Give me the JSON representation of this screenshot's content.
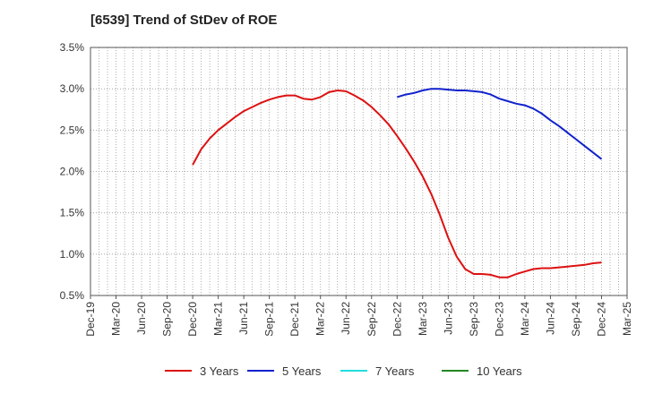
{
  "title": "[6539]  Trend of StDev of ROE",
  "chart_data": {
    "type": "line",
    "title": "[6539]  Trend of StDev of ROE",
    "xlabel": "",
    "ylabel": "",
    "ylim": [
      0.5,
      3.5
    ],
    "y_ticks": [
      0.5,
      1.0,
      1.5,
      2.0,
      2.5,
      3.0,
      3.5
    ],
    "y_tick_labels": [
      "0.5%",
      "1.0%",
      "1.5%",
      "2.0%",
      "2.5%",
      "3.0%",
      "3.5%"
    ],
    "x_tick_labels": [
      "Dec-19",
      "Mar-20",
      "Jun-20",
      "Sep-20",
      "Dec-20",
      "Mar-21",
      "Jun-21",
      "Sep-21",
      "Dec-21",
      "Mar-22",
      "Jun-22",
      "Sep-22",
      "Dec-22",
      "Mar-23",
      "Jun-23",
      "Sep-23",
      "Dec-23",
      "Mar-24",
      "Jun-24",
      "Sep-24",
      "Dec-24",
      "Mar-25"
    ],
    "x_unit": "month",
    "x_start": "2019-12",
    "x_end": "2025-03",
    "grid": true,
    "legend_position": "bottom",
    "series": [
      {
        "name": "3 Years",
        "color": "#dd1111",
        "points": [
          [
            "2020-12",
            2.08
          ],
          [
            "2021-01",
            2.27
          ],
          [
            "2021-02",
            2.4
          ],
          [
            "2021-03",
            2.5
          ],
          [
            "2021-04",
            2.58
          ],
          [
            "2021-05",
            2.66
          ],
          [
            "2021-06",
            2.73
          ],
          [
            "2021-07",
            2.78
          ],
          [
            "2021-08",
            2.83
          ],
          [
            "2021-09",
            2.87
          ],
          [
            "2021-10",
            2.9
          ],
          [
            "2021-11",
            2.92
          ],
          [
            "2021-12",
            2.92
          ],
          [
            "2022-01",
            2.88
          ],
          [
            "2022-02",
            2.87
          ],
          [
            "2022-03",
            2.9
          ],
          [
            "2022-04",
            2.96
          ],
          [
            "2022-05",
            2.98
          ],
          [
            "2022-06",
            2.97
          ],
          [
            "2022-07",
            2.92
          ],
          [
            "2022-08",
            2.86
          ],
          [
            "2022-09",
            2.78
          ],
          [
            "2022-10",
            2.68
          ],
          [
            "2022-11",
            2.57
          ],
          [
            "2022-12",
            2.43
          ],
          [
            "2023-01",
            2.28
          ],
          [
            "2023-02",
            2.12
          ],
          [
            "2023-03",
            1.94
          ],
          [
            "2023-04",
            1.73
          ],
          [
            "2023-05",
            1.48
          ],
          [
            "2023-06",
            1.2
          ],
          [
            "2023-07",
            0.97
          ],
          [
            "2023-08",
            0.82
          ],
          [
            "2023-09",
            0.76
          ],
          [
            "2023-10",
            0.76
          ],
          [
            "2023-11",
            0.75
          ],
          [
            "2023-12",
            0.72
          ],
          [
            "2024-01",
            0.72
          ],
          [
            "2024-02",
            0.76
          ],
          [
            "2024-03",
            0.79
          ],
          [
            "2024-04",
            0.82
          ],
          [
            "2024-05",
            0.83
          ],
          [
            "2024-06",
            0.83
          ],
          [
            "2024-07",
            0.84
          ],
          [
            "2024-08",
            0.85
          ],
          [
            "2024-09",
            0.86
          ],
          [
            "2024-10",
            0.87
          ],
          [
            "2024-11",
            0.89
          ],
          [
            "2024-12",
            0.9
          ]
        ]
      },
      {
        "name": "5 Years",
        "color": "#1122cc",
        "points": [
          [
            "2022-12",
            2.9
          ],
          [
            "2023-01",
            2.93
          ],
          [
            "2023-02",
            2.95
          ],
          [
            "2023-03",
            2.98
          ],
          [
            "2023-04",
            3.0
          ],
          [
            "2023-05",
            3.0
          ],
          [
            "2023-06",
            2.99
          ],
          [
            "2023-07",
            2.98
          ],
          [
            "2023-08",
            2.98
          ],
          [
            "2023-09",
            2.97
          ],
          [
            "2023-10",
            2.96
          ],
          [
            "2023-11",
            2.93
          ],
          [
            "2023-12",
            2.88
          ],
          [
            "2024-01",
            2.85
          ],
          [
            "2024-02",
            2.82
          ],
          [
            "2024-03",
            2.8
          ],
          [
            "2024-04",
            2.76
          ],
          [
            "2024-05",
            2.7
          ],
          [
            "2024-06",
            2.62
          ],
          [
            "2024-07",
            2.55
          ],
          [
            "2024-08",
            2.47
          ],
          [
            "2024-09",
            2.39
          ],
          [
            "2024-10",
            2.31
          ],
          [
            "2024-11",
            2.23
          ],
          [
            "2024-12",
            2.15
          ]
        ]
      },
      {
        "name": "7 Years",
        "color": "#22dddd",
        "points": []
      },
      {
        "name": "10 Years",
        "color": "#228822",
        "points": []
      }
    ]
  }
}
